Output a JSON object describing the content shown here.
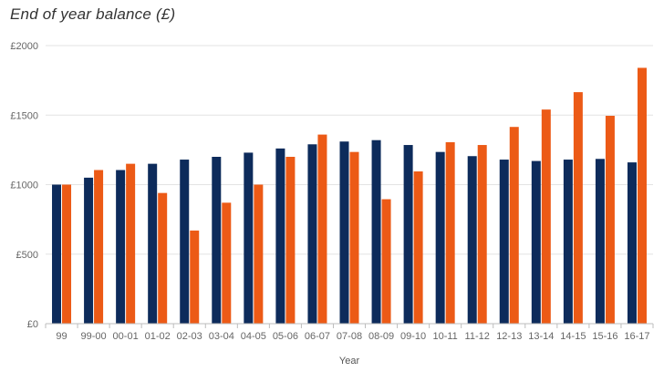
{
  "chart_data": {
    "type": "bar",
    "title": "End of year balance (£)",
    "xlabel": "Year",
    "ylabel": "",
    "ylim": [
      0,
      2000
    ],
    "yticks": [
      0,
      500,
      1000,
      1500,
      2000
    ],
    "ytick_labels": [
      "£0",
      "£500",
      "£1000",
      "£1500",
      "£2000"
    ],
    "grid": true,
    "legend": "none",
    "categories": [
      "99",
      "99-00",
      "00-01",
      "01-02",
      "02-03",
      "03-04",
      "04-05",
      "05-06",
      "06-07",
      "07-08",
      "08-09",
      "09-10",
      "10-11",
      "11-12",
      "12-13",
      "13-14",
      "14-15",
      "15-16",
      "16-17"
    ],
    "series": [
      {
        "color": "#0d2b5b",
        "values": [
          1000,
          1050,
          1105,
          1150,
          1180,
          1200,
          1230,
          1260,
          1290,
          1310,
          1320,
          1285,
          1235,
          1205,
          1180,
          1170,
          1180,
          1185,
          1160
        ]
      },
      {
        "color": "#ec5a16",
        "values": [
          1000,
          1105,
          1150,
          940,
          670,
          870,
          1000,
          1200,
          1360,
          1235,
          895,
          1095,
          1305,
          1285,
          1415,
          1540,
          1665,
          1495,
          1840
        ]
      }
    ]
  }
}
